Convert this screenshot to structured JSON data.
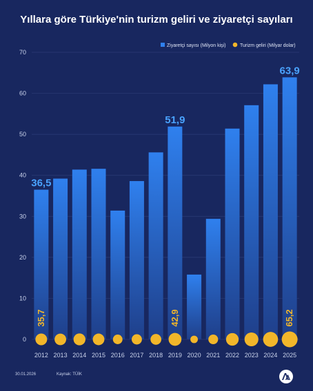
{
  "title": "Yıllara göre Türkiye'nin turizm geliri ve ziyaretçi sayıları",
  "footer": {
    "date": "30.01.2026",
    "source": "Kaynak: TÜİK"
  },
  "logo": "AA",
  "colors": {
    "background": "#18275f",
    "bar_top": "#2f80ee",
    "bar_bottom": "#1f3f8a",
    "callout": "#4aa3ff",
    "revenue": "#f2b62a"
  },
  "chart_data": {
    "type": "bar",
    "categories": [
      "2012",
      "2013",
      "2014",
      "2015",
      "2016",
      "2017",
      "2018",
      "2019",
      "2020",
      "2021",
      "2022",
      "2023",
      "2024",
      "2025"
    ],
    "ylim": [
      0,
      70
    ],
    "yticks": [
      0,
      10,
      20,
      30,
      40,
      50,
      60,
      70
    ],
    "grid": true,
    "legend_position": "top-right",
    "series": [
      {
        "name": "Ziyaretçi sayısı (Milyon kişi)",
        "kind": "bar",
        "values": [
          36.5,
          39.2,
          41.4,
          41.6,
          31.4,
          38.6,
          45.6,
          51.9,
          15.8,
          29.4,
          51.4,
          57.1,
          62.2,
          63.9
        ]
      },
      {
        "name": "Turizm geliri (Milyar dolar)",
        "kind": "bubble",
        "values": [
          35.7,
          35.0,
          37.0,
          35.1,
          23.8,
          27.3,
          30.5,
          42.9,
          14.5,
          24.5,
          41.2,
          49.7,
          58.0,
          65.2
        ]
      }
    ],
    "labels": {
      "visitors": [
        {
          "index": 0,
          "text": "36,5"
        },
        {
          "index": 7,
          "text": "51,9"
        },
        {
          "index": 13,
          "text": "63,9"
        }
      ],
      "revenue": [
        {
          "index": 0,
          "text": "35,7"
        },
        {
          "index": 7,
          "text": "42,9"
        },
        {
          "index": 13,
          "text": "65,2"
        }
      ]
    }
  }
}
